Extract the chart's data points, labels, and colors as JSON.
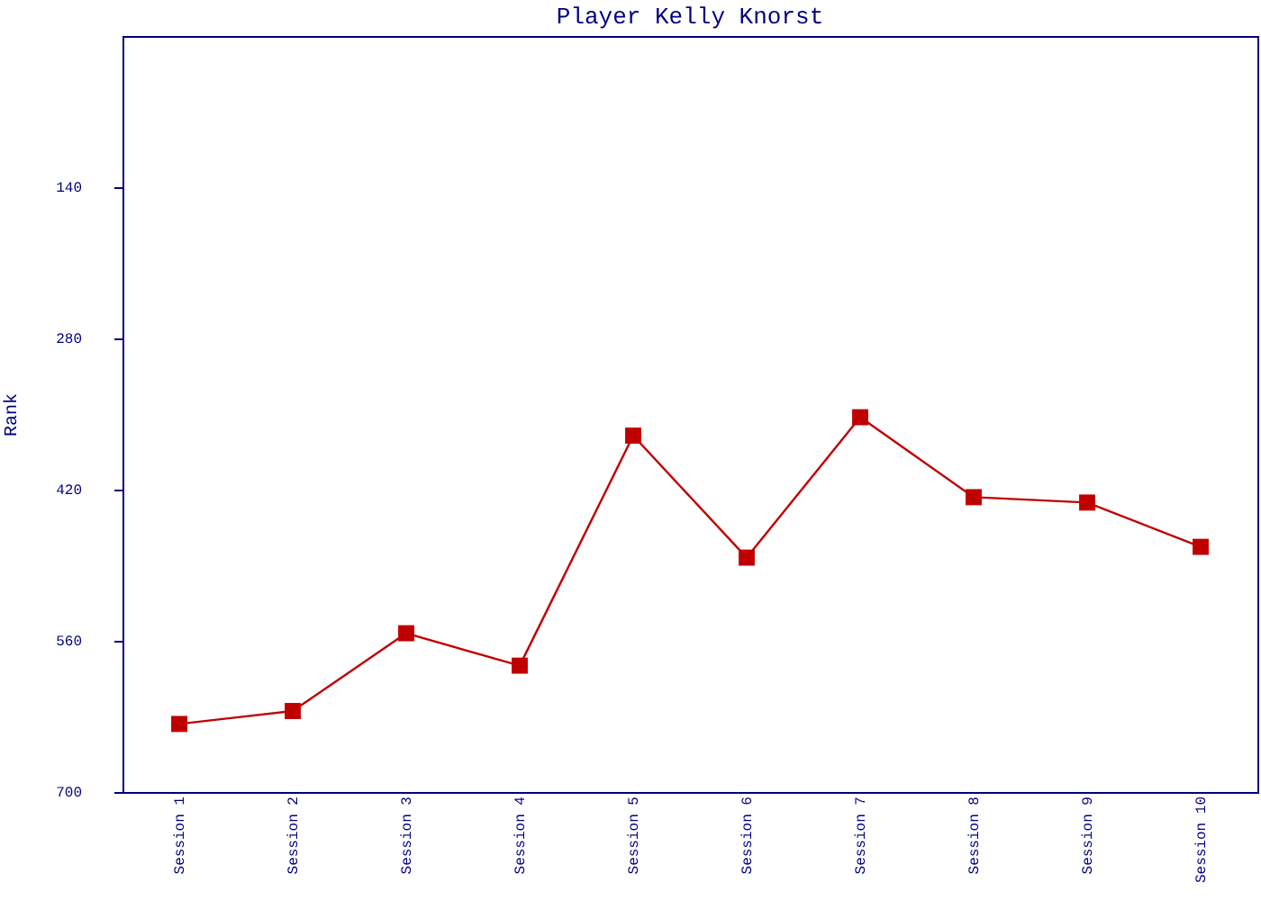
{
  "chart_data": {
    "type": "line",
    "title": "Player Kelly Knorst",
    "ylabel": "Rank",
    "categories": [
      "Session 1",
      "Session 2",
      "Session 3",
      "Session 4",
      "Session 5",
      "Session 6",
      "Session 7",
      "Session 8",
      "Session 9",
      "Session 10"
    ],
    "series": [
      {
        "color": "#c00000",
        "values": [
          637,
          625,
          553,
          583,
          370,
          483,
          353,
          427,
          432,
          473
        ]
      }
    ],
    "ylim": [
      700,
      0
    ],
    "yticks": [
      140,
      280,
      420,
      560,
      700
    ],
    "grid": false,
    "marker": "square",
    "line_style": "solid"
  }
}
